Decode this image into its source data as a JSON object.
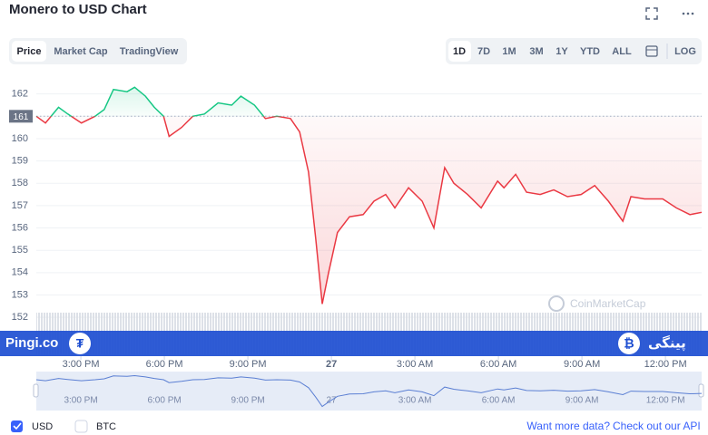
{
  "header": {
    "title": "Monero to USD Chart",
    "tabs": [
      "Price",
      "Market Cap",
      "TradingView"
    ],
    "ranges": [
      "1D",
      "7D",
      "1M",
      "3M",
      "1Y",
      "YTD",
      "ALL"
    ],
    "log": "LOG"
  },
  "chart_data": {
    "type": "line",
    "x": [
      13.4,
      13.73,
      14.2,
      14.53,
      15.02,
      15.51,
      15.84,
      16.17,
      16.66,
      16.93,
      17.32,
      17.64,
      17.97,
      18.17,
      18.62,
      19.02,
      19.44,
      19.93,
      20.42,
      20.75,
      21.24,
      21.63,
      22.04,
      22.53,
      22.86,
      23.18,
      23.44,
      23.67,
      23.9,
      24.22,
      24.65,
      25.14,
      25.53,
      25.95,
      26.28,
      26.77,
      27.26,
      27.68,
      28.07,
      28.4,
      28.89,
      29.38,
      29.97,
      30.2,
      30.62,
      31.01,
      31.5,
      31.99,
      32.48,
      32.97,
      33.46,
      33.95,
      34.47,
      34.76,
      35.25,
      35.9,
      36.39,
      36.88,
      37.3
    ],
    "series": [
      {
        "name": "Price",
        "up_color": "#16c784",
        "down_color": "#ea3943",
        "values": [
          161.0,
          160.7,
          161.4,
          161.1,
          160.7,
          161.0,
          161.3,
          162.2,
          162.1,
          162.3,
          161.9,
          161.4,
          161.0,
          160.1,
          160.5,
          161.0,
          161.1,
          161.6,
          161.5,
          161.9,
          161.5,
          160.9,
          161.0,
          160.9,
          160.3,
          158.5,
          155.5,
          152.6,
          154.0,
          155.8,
          156.5,
          156.6,
          157.2,
          157.5,
          156.9,
          157.8,
          157.2,
          156.0,
          158.7,
          158.0,
          157.5,
          156.9,
          158.1,
          157.8,
          158.4,
          157.6,
          157.5,
          157.7,
          157.4,
          157.5,
          157.9,
          157.2,
          156.3,
          157.4,
          157.3,
          157.3,
          156.9,
          156.6,
          156.7
        ]
      }
    ],
    "baseline": 161,
    "xlim": [
      13.4,
      37.3
    ],
    "xticks": [
      {
        "value": 15,
        "label": "3:00 PM"
      },
      {
        "value": 18,
        "label": "6:00 PM"
      },
      {
        "value": 21,
        "label": "9:00 PM"
      },
      {
        "value": 24,
        "label": "27"
      },
      {
        "value": 27,
        "label": "3:00 AM"
      },
      {
        "value": 30,
        "label": "6:00 AM"
      },
      {
        "value": 33,
        "label": "9:00 AM"
      },
      {
        "value": 36,
        "label": "12:00 PM"
      }
    ],
    "ylim": [
      151.6,
      163
    ],
    "yticks": [
      152,
      153,
      154,
      155,
      156,
      157,
      158,
      159,
      160,
      161,
      162
    ],
    "grid": true,
    "watermark": "CoinMarketCap"
  },
  "banner": {
    "left": "Pingi.co",
    "right": "پینگی"
  },
  "footer": {
    "currencies": [
      "USD",
      "BTC"
    ],
    "prompt": "Want more data?",
    "link": "Check out our API"
  }
}
